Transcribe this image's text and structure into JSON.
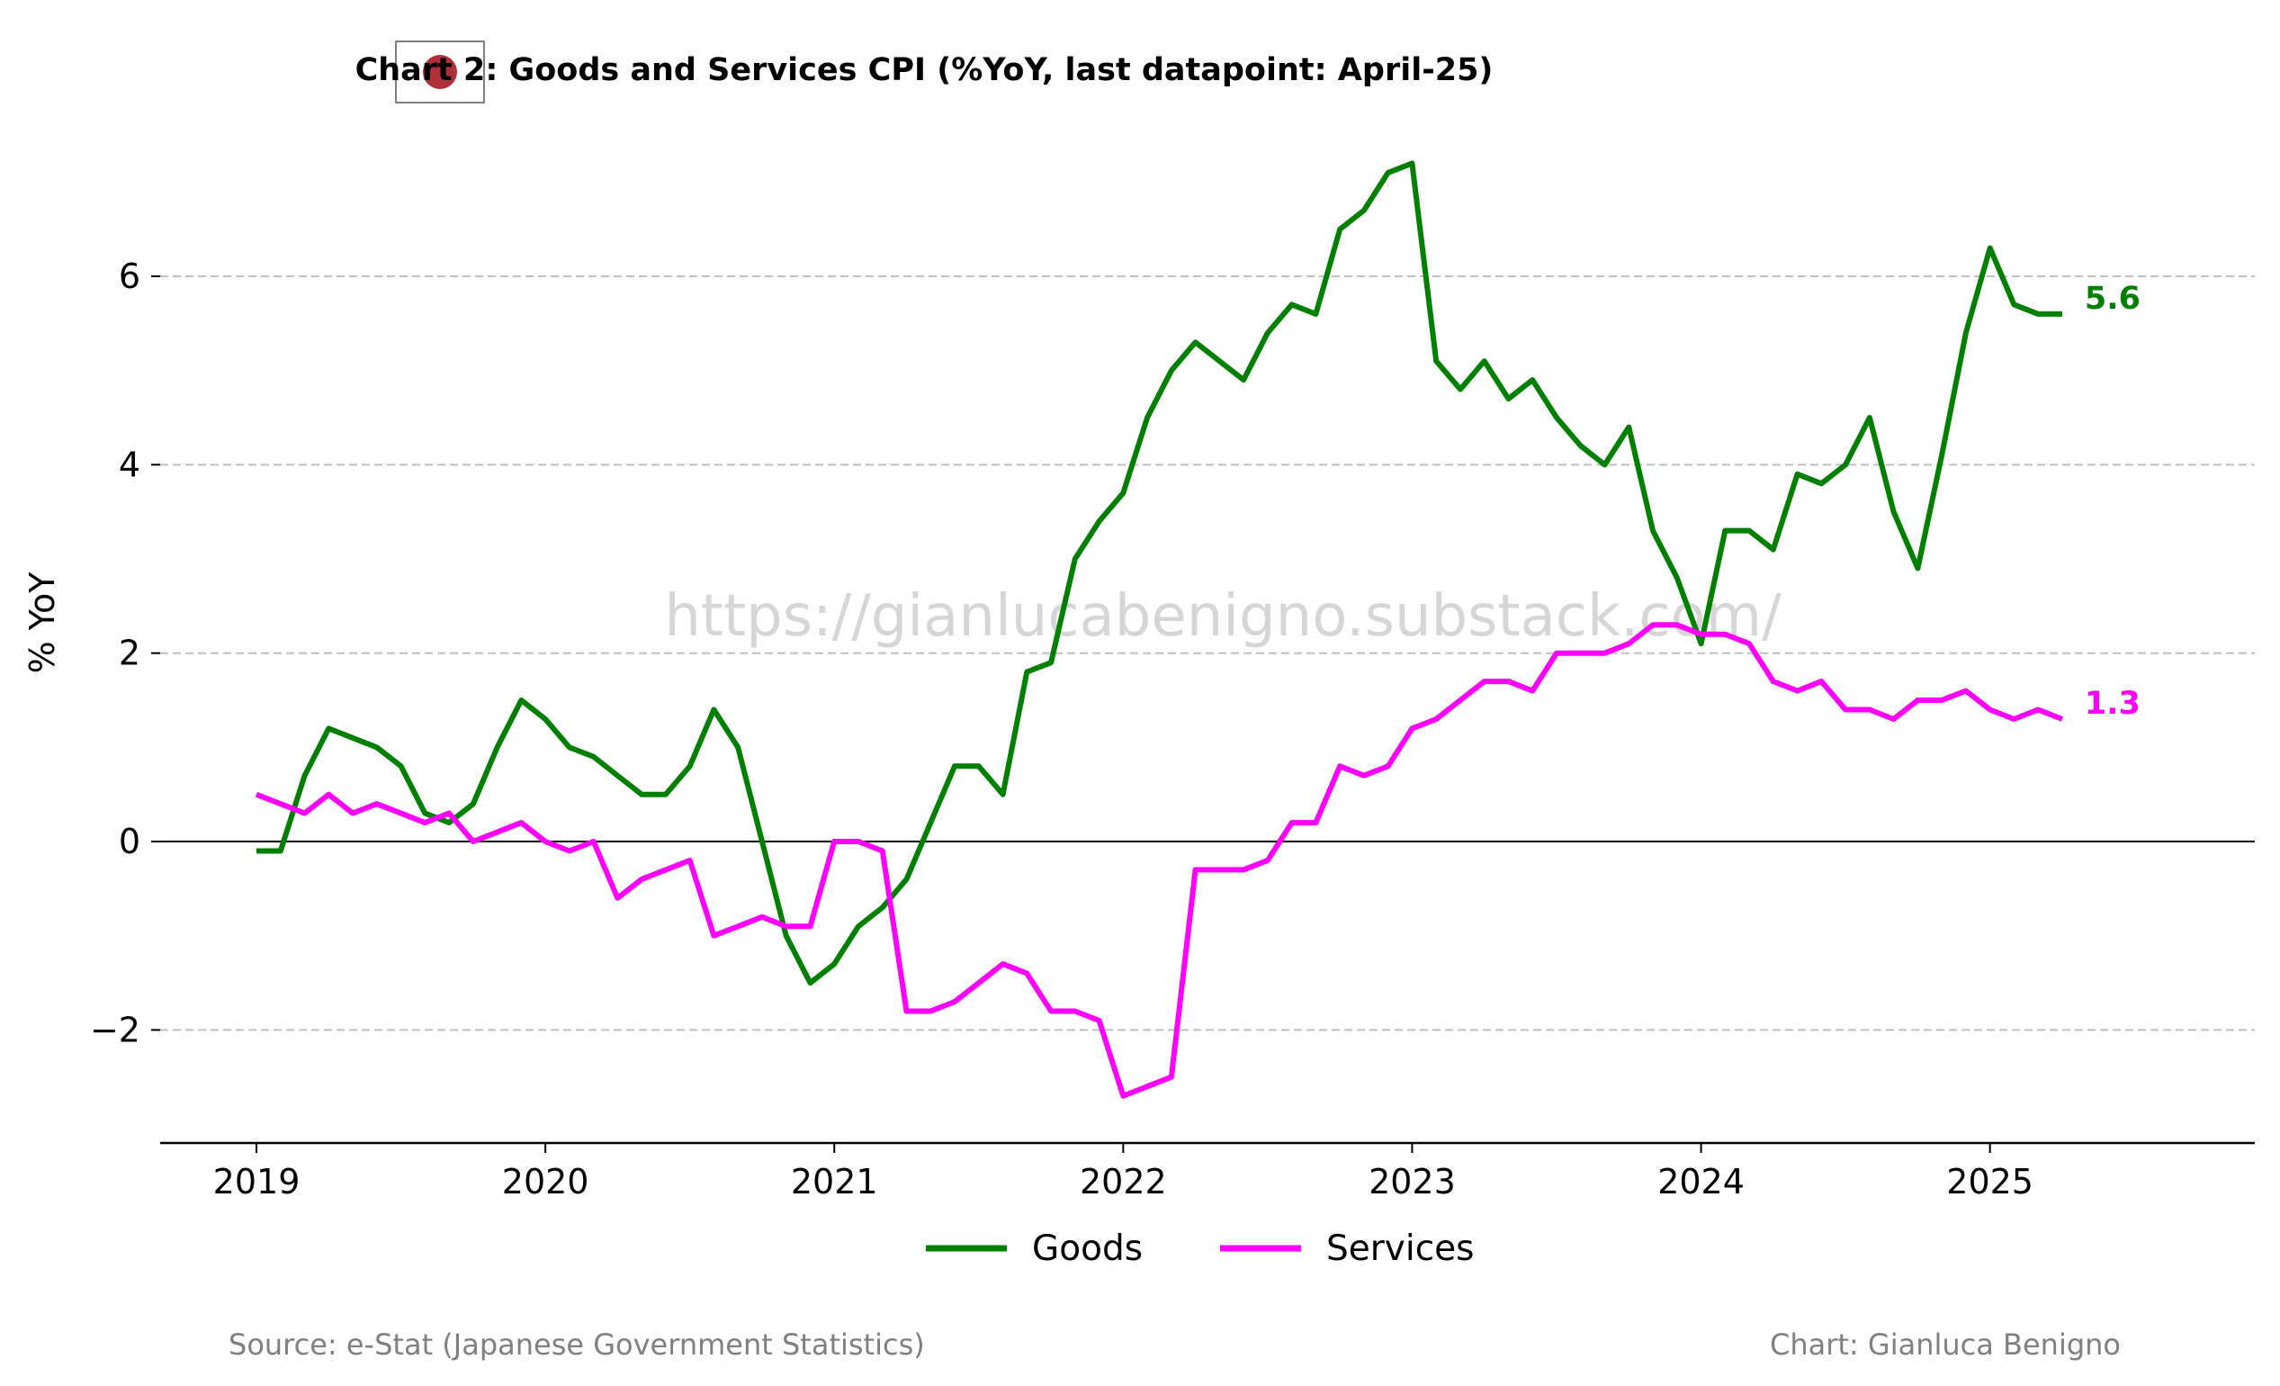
{
  "chart_data": {
    "type": "line",
    "title": "Chart 2: Goods and Services CPI (%YoY, last datapoint: April-25)",
    "ylabel": "% YoY",
    "xlabel": "",
    "x_ticks": [
      "2019",
      "2020",
      "2021",
      "2022",
      "2023",
      "2024",
      "2025"
    ],
    "y_ticks": [
      6,
      4,
      2,
      0,
      -2
    ],
    "y_tick_labels": [
      "6",
      "4",
      "2",
      "0",
      "−2"
    ],
    "ylim": [
      -3.2,
      7.5
    ],
    "xlim": [
      "2018-09",
      "2025-12"
    ],
    "grid": "horizontal dashed",
    "legend_position": "bottom-center",
    "x": [
      "2019-01",
      "2019-02",
      "2019-03",
      "2019-04",
      "2019-05",
      "2019-06",
      "2019-07",
      "2019-08",
      "2019-09",
      "2019-10",
      "2019-11",
      "2019-12",
      "2020-01",
      "2020-02",
      "2020-03",
      "2020-04",
      "2020-05",
      "2020-06",
      "2020-07",
      "2020-08",
      "2020-09",
      "2020-10",
      "2020-11",
      "2020-12",
      "2021-01",
      "2021-02",
      "2021-03",
      "2021-04",
      "2021-05",
      "2021-06",
      "2021-07",
      "2021-08",
      "2021-09",
      "2021-10",
      "2021-11",
      "2021-12",
      "2022-01",
      "2022-02",
      "2022-03",
      "2022-04",
      "2022-05",
      "2022-06",
      "2022-07",
      "2022-08",
      "2022-09",
      "2022-10",
      "2022-11",
      "2022-12",
      "2023-01",
      "2023-02",
      "2023-03",
      "2023-04",
      "2023-05",
      "2023-06",
      "2023-07",
      "2023-08",
      "2023-09",
      "2023-10",
      "2023-11",
      "2023-12",
      "2024-01",
      "2024-02",
      "2024-03",
      "2024-04",
      "2024-05",
      "2024-06",
      "2024-07",
      "2024-08",
      "2024-09",
      "2024-10",
      "2024-11",
      "2024-12",
      "2025-01",
      "2025-02",
      "2025-03",
      "2025-04"
    ],
    "series": [
      {
        "name": "Goods",
        "color": "#008000",
        "end_label": "5.6",
        "values": [
          -0.1,
          -0.1,
          0.7,
          1.2,
          1.1,
          1.0,
          0.8,
          0.3,
          0.2,
          0.4,
          1.0,
          1.5,
          1.3,
          1.0,
          0.9,
          0.7,
          0.5,
          0.5,
          0.8,
          1.4,
          1.0,
          0.0,
          -1.0,
          -1.5,
          -1.3,
          -0.9,
          -0.7,
          -0.4,
          0.2,
          0.8,
          0.8,
          0.5,
          1.8,
          1.9,
          3.0,
          3.4,
          3.7,
          4.5,
          5.0,
          5.3,
          5.1,
          4.9,
          5.4,
          5.7,
          5.6,
          6.5,
          6.7,
          7.1,
          7.2,
          5.1,
          4.8,
          5.1,
          4.7,
          4.9,
          4.5,
          4.2,
          4.0,
          4.4,
          3.3,
          2.8,
          2.1,
          3.3,
          3.3,
          3.1,
          3.9,
          3.8,
          4.0,
          4.5,
          3.5,
          2.9,
          4.1,
          5.4,
          6.3,
          5.7,
          5.6,
          5.6
        ]
      },
      {
        "name": "Services",
        "color": "#ff00ff",
        "end_label": "1.3",
        "values": [
          0.5,
          0.4,
          0.3,
          0.5,
          0.3,
          0.4,
          0.3,
          0.2,
          0.3,
          0.0,
          0.1,
          0.2,
          0.0,
          -0.1,
          0.0,
          -0.6,
          -0.4,
          -0.3,
          -0.2,
          -1.0,
          -0.9,
          -0.8,
          -0.9,
          -0.9,
          0.0,
          0.0,
          -0.1,
          -1.8,
          -1.8,
          -1.7,
          -1.5,
          -1.3,
          -1.4,
          -1.8,
          -1.8,
          -1.9,
          -2.7,
          -2.6,
          -2.5,
          -0.3,
          -0.3,
          -0.3,
          -0.2,
          0.2,
          0.2,
          0.8,
          0.7,
          0.8,
          1.2,
          1.3,
          1.5,
          1.7,
          1.7,
          1.6,
          2.0,
          2.0,
          2.0,
          2.1,
          2.3,
          2.3,
          2.2,
          2.2,
          2.1,
          1.7,
          1.6,
          1.7,
          1.4,
          1.4,
          1.3,
          1.5,
          1.5,
          1.6,
          1.4,
          1.3,
          1.4,
          1.3
        ]
      }
    ]
  },
  "watermark": "https://gianlucabenigno.substack.com/",
  "footer": {
    "source": "Source: e-Stat (Japanese Government Statistics)",
    "credit": "Chart: Gianluca Benigno"
  },
  "flag": {
    "icon": "japan-flag-icon",
    "field_color": "#ffffff",
    "disc_color": "#b0303a"
  },
  "colors": {
    "grid": "#c0c0c0",
    "zero_line": "#000000",
    "axis": "#000000"
  }
}
